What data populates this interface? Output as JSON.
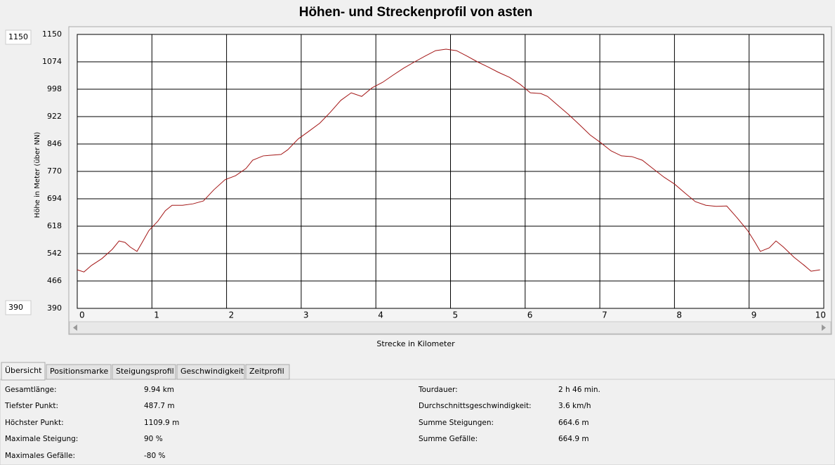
{
  "chart_data": {
    "type": "line",
    "title": "Höhen- und Streckenprofil von asten",
    "y_label": "Höhe in Meter (über NN)",
    "x_label": "Strecke in Kilometer",
    "x": [
      0,
      0.09,
      0.19,
      0.33,
      0.47,
      0.56,
      0.64,
      0.71,
      0.8,
      0.87,
      0.96,
      1.08,
      1.18,
      1.27,
      1.41,
      1.55,
      1.69,
      1.83,
      1.98,
      2.12,
      2.26,
      2.35,
      2.49,
      2.73,
      2.82,
      2.96,
      3.1,
      3.25,
      3.39,
      3.53,
      3.67,
      3.81,
      3.95,
      4.09,
      4.23,
      4.37,
      4.52,
      4.66,
      4.8,
      4.94,
      5.08,
      5.22,
      5.36,
      5.5,
      5.64,
      5.79,
      5.93,
      6.07,
      6.21,
      6.3,
      6.44,
      6.58,
      6.73,
      6.87,
      7.01,
      7.15,
      7.29,
      7.43,
      7.57,
      7.71,
      7.86,
      8.0,
      8.14,
      8.28,
      8.42,
      8.56,
      8.7,
      8.84,
      8.98,
      9.08,
      9.15,
      9.27,
      9.36,
      9.46,
      9.6,
      9.74,
      9.83,
      9.95
    ],
    "series": [
      {
        "color": "#a31515",
        "values": [
          497,
          491,
          509,
          528,
          554,
          577,
          573,
          560,
          548,
          573,
          606,
          632,
          661,
          676,
          676,
          680,
          688,
          719,
          747,
          758,
          778,
          801,
          813,
          817,
          830,
          860,
          881,
          904,
          934,
          967,
          988,
          978,
          1002,
          1017,
          1037,
          1056,
          1074,
          1090,
          1105,
          1109,
          1105,
          1090,
          1074,
          1060,
          1045,
          1031,
          1012,
          988,
          986,
          978,
          953,
          928,
          899,
          871,
          850,
          827,
          813,
          811,
          801,
          778,
          754,
          735,
          710,
          686,
          676,
          673,
          674,
          641,
          606,
          573,
          548,
          558,
          577,
          560,
          532,
          509,
          493,
          497
        ]
      }
    ],
    "xlim": [
      0,
      10
    ],
    "xticks": [
      0,
      1,
      2,
      3,
      4,
      5,
      6,
      7,
      8,
      9,
      10
    ],
    "ylim": [
      390,
      1150
    ],
    "yticks": [
      390,
      466,
      542,
      618,
      694,
      770,
      846,
      922,
      998,
      1074,
      1150
    ],
    "grid": true
  },
  "tabs": [
    "Übersicht",
    "Positionsmarke",
    "Steigungsprofil",
    "Geschwindigkeit",
    "Zeitprofil"
  ],
  "stats_left": [
    [
      "Gesamtlänge:",
      "9.94 km"
    ],
    [
      "Tiefster Punkt:",
      "487.7 m"
    ],
    [
      "Höchster Punkt:",
      "1109.9 m"
    ],
    [
      "Maximale Steigung:",
      "90 %"
    ],
    [
      "Maximales Gefälle:",
      "-80 %"
    ]
  ],
  "stats_right": [
    [
      "Tourdauer:",
      "2 h 46 min."
    ],
    [
      "Durchschnittsgeschwindigkeit:",
      "3.6 km/h"
    ],
    [
      "Summe Steigungen:",
      "664.6 m"
    ],
    [
      "Summe Gefälle:",
      "664.9 m"
    ]
  ]
}
